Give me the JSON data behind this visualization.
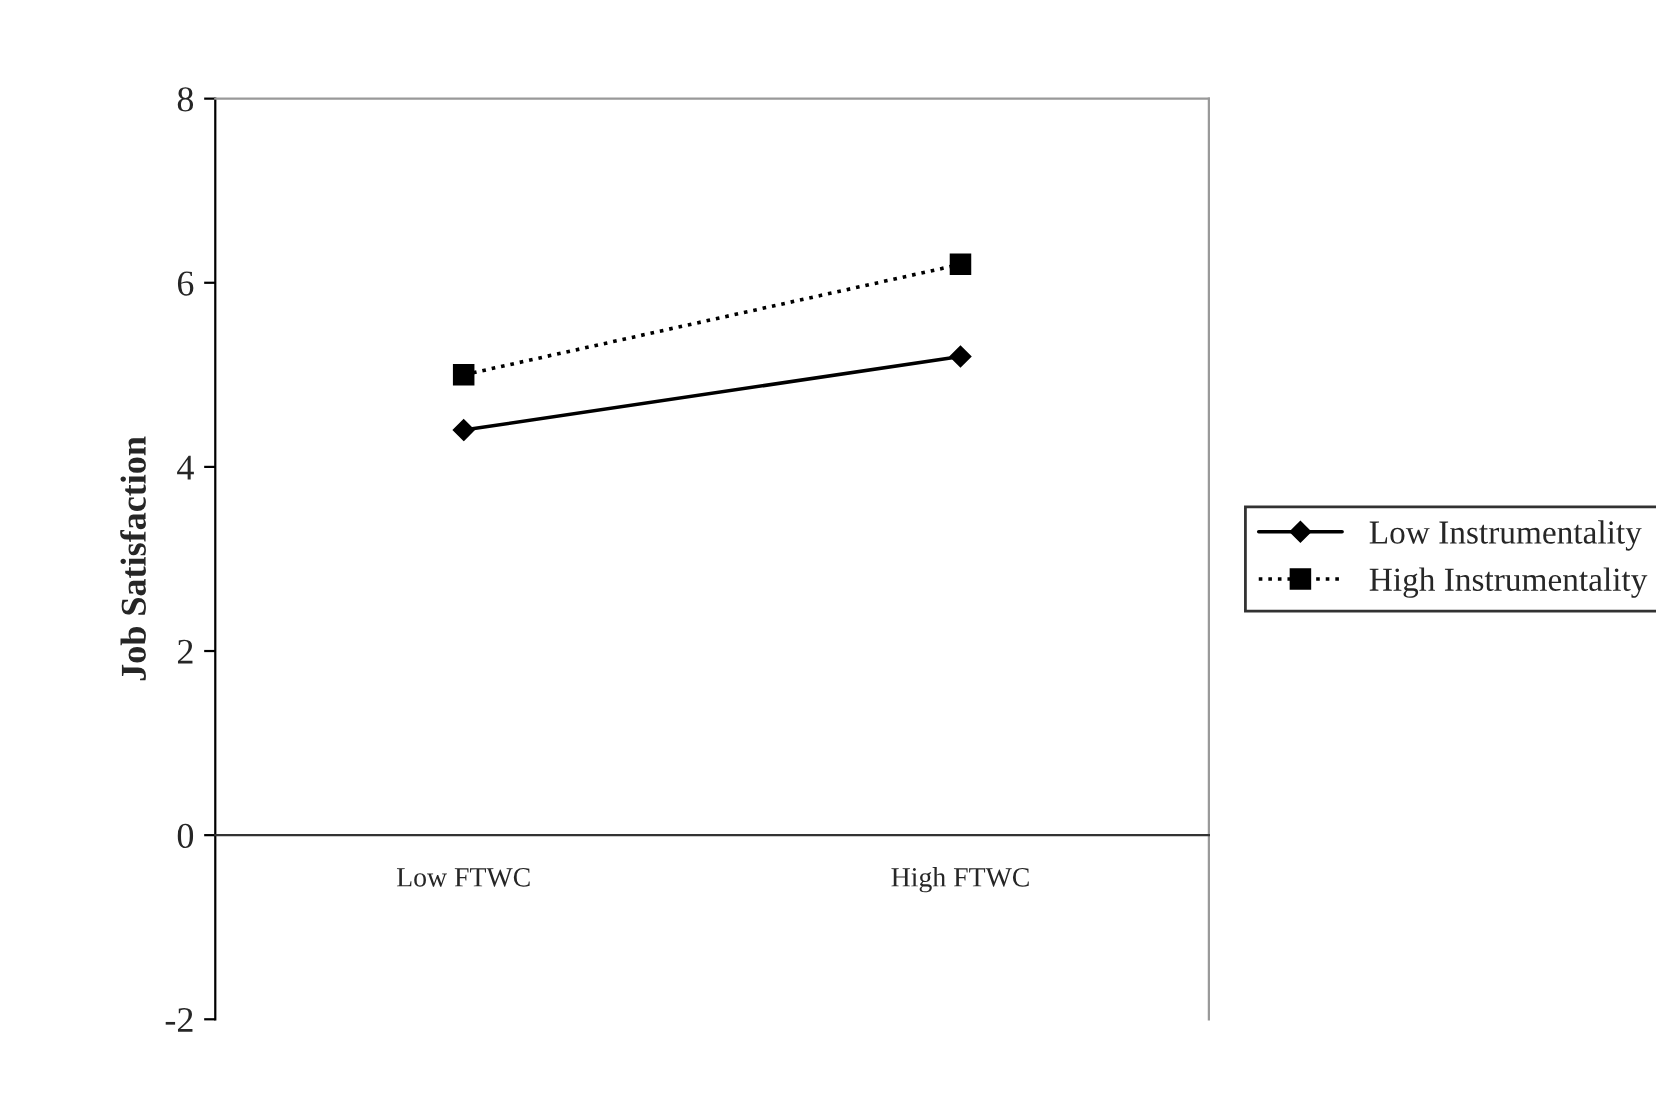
{
  "chart_data": {
    "type": "line",
    "ylabel": "Job Satisfaction",
    "categories": [
      "Low FTWC",
      "High FTWC"
    ],
    "series": [
      {
        "name": "Low Instrumentality",
        "color": "#000000",
        "values": [
          4.4,
          5.2
        ],
        "marker": "diamond",
        "line_style": "solid"
      },
      {
        "name": "High Instrumentality",
        "color": "#000000",
        "values": [
          5.0,
          6.2
        ],
        "marker": "square",
        "line_style": "dotted"
      }
    ],
    "ylim": [
      -2,
      8
    ],
    "yticks": [
      -2,
      0,
      2,
      4,
      6,
      8
    ],
    "grid": false,
    "legend": "right"
  }
}
